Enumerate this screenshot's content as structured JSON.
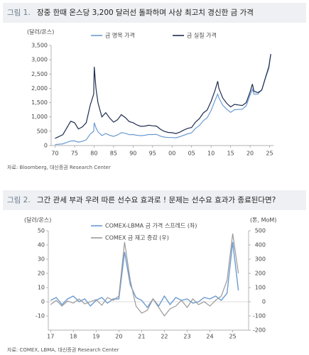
{
  "chart_data": [
    {
      "type": "line",
      "figure_label": "그림 1.",
      "title": "장중 한때 온스당 3,200 달러선 돌파하며 사상 최고치 경신한 금 가격",
      "y_unit": "(달러/온스)",
      "source": "자료: Bloomberg, 대신증권 Research Center",
      "x": [
        1970,
        1972,
        1974,
        1975,
        1976,
        1977,
        1978,
        1979,
        1979.9,
        1980.05,
        1980.5,
        1981,
        1982,
        1983,
        1984,
        1985,
        1986,
        1987,
        1988,
        1989,
        1990,
        1991,
        1992,
        1993,
        1994,
        1995,
        1996,
        1997,
        1998,
        1999,
        2000,
        2001,
        2002,
        2003,
        2004,
        2005,
        2006,
        2007,
        2008,
        2009,
        2010,
        2011,
        2011.7,
        2012,
        2013,
        2014,
        2015,
        2016,
        2017,
        2018,
        2019,
        2020,
        2020.6,
        2021,
        2022,
        2023,
        2024,
        2024.8,
        2025.3
      ],
      "series": [
        {
          "name": "금 명목 가격",
          "color": "#6a9bd1",
          "values": [
            35,
            60,
            160,
            165,
            120,
            150,
            200,
            400,
            500,
            800,
            620,
            480,
            350,
            420,
            360,
            320,
            370,
            450,
            430,
            380,
            385,
            360,
            345,
            360,
            385,
            385,
            390,
            330,
            295,
            280,
            280,
            270,
            310,
            360,
            410,
            445,
            600,
            700,
            870,
            970,
            1220,
            1570,
            1800,
            1670,
            1410,
            1270,
            1160,
            1250,
            1260,
            1270,
            1390,
            1770,
            1970,
            1800,
            1800,
            1940,
            2380,
            2700,
            3200
          ]
        },
        {
          "name": "금 실질 가격",
          "color": "#1f2d4f",
          "values": [
            250,
            380,
            850,
            800,
            580,
            650,
            800,
            1400,
            1800,
            2750,
            2000,
            1500,
            1000,
            1150,
            960,
            820,
            900,
            1080,
            980,
            840,
            800,
            720,
            670,
            680,
            710,
            690,
            680,
            570,
            500,
            460,
            450,
            420,
            470,
            540,
            600,
            630,
            820,
            940,
            1140,
            1240,
            1540,
            1920,
            2250,
            2000,
            1660,
            1480,
            1350,
            1440,
            1420,
            1400,
            1500,
            1880,
            2150,
            1900,
            1850,
            1940,
            2400,
            2750,
            3200
          ]
        }
      ],
      "xlim": [
        1969,
        2026
      ],
      "xticks": [
        {
          "value": 1970,
          "label": "70"
        },
        {
          "value": 1975,
          "label": "75"
        },
        {
          "value": 1980,
          "label": "80"
        },
        {
          "value": 1985,
          "label": "85"
        },
        {
          "value": 1990,
          "label": "90"
        },
        {
          "value": 1995,
          "label": "95"
        },
        {
          "value": 2000,
          "label": "00"
        },
        {
          "value": 2005,
          "label": "05"
        },
        {
          "value": 2010,
          "label": "10"
        },
        {
          "value": 2015,
          "label": "15"
        },
        {
          "value": 2020,
          "label": "20"
        },
        {
          "value": 2025,
          "label": "25"
        }
      ],
      "ylim": [
        0,
        3500
      ],
      "yticks": [
        0,
        500,
        {
          "value": 1000,
          "label": "1,000"
        },
        {
          "value": 1500,
          "label": "1,500"
        },
        {
          "value": 2000,
          "label": "2,000"
        },
        {
          "value": 2500,
          "label": "2,500"
        },
        {
          "value": 3000,
          "label": "3,000"
        },
        {
          "value": 3500,
          "label": "3,500"
        }
      ],
      "grid": false,
      "legend": "top"
    },
    {
      "type": "line",
      "figure_label": "그림 2.",
      "title": "그간 관세 부과 우려 따른 선수요 효과로 ! 문제는 선수요 효과가 종료된다면?",
      "y_unit": "(달러/온스)",
      "y2_unit": "(톤, MoM)",
      "source": "자료: COMEX, LBMA, 대신증권 Research Center",
      "x": [
        2017,
        2017.25,
        2017.5,
        2017.75,
        2018,
        2018.25,
        2018.5,
        2018.75,
        2019,
        2019.25,
        2019.5,
        2019.75,
        2020,
        2020.25,
        2020.5,
        2020.75,
        2021,
        2021.25,
        2021.5,
        2021.75,
        2022,
        2022.25,
        2022.5,
        2022.75,
        2023,
        2023.25,
        2023.5,
        2023.75,
        2024,
        2024.25,
        2024.5,
        2024.75,
        2025,
        2025.25
      ],
      "series": [
        {
          "name": "COMEX-LBMA 금 가격 스프레드 (좌)",
          "color": "#6a9bd1",
          "values": [
            1,
            3,
            -2,
            2,
            4,
            0,
            2,
            -3,
            1,
            3,
            -1,
            2,
            2,
            35,
            12,
            3,
            1,
            -4,
            2,
            -3,
            4,
            -2,
            3,
            1,
            2,
            -1,
            0,
            3,
            2,
            4,
            1,
            6,
            42,
            8
          ]
        },
        {
          "name": "COMEX 금 재고 증감 (우)",
          "color": "#9a9a9a",
          "axis": "y2",
          "values": [
            -20,
            10,
            -30,
            5,
            -10,
            20,
            -15,
            0,
            15,
            -25,
            30,
            10,
            40,
            420,
            150,
            -30,
            -80,
            -60,
            20,
            -40,
            -100,
            -50,
            -30,
            10,
            -40,
            20,
            -20,
            0,
            -30,
            10,
            40,
            150,
            480,
            200
          ]
        }
      ],
      "xlim": [
        2016.9,
        2025.7
      ],
      "xticks": [
        {
          "value": 2017,
          "label": "17"
        },
        {
          "value": 2018,
          "label": "18"
        },
        {
          "value": 2019,
          "label": "19"
        },
        {
          "value": 2020,
          "label": "20"
        },
        {
          "value": 2021,
          "label": "21"
        },
        {
          "value": 2022,
          "label": "22"
        },
        {
          "value": 2023,
          "label": "23"
        },
        {
          "value": 2024,
          "label": "24"
        },
        {
          "value": 2025,
          "label": "25"
        }
      ],
      "ylim": [
        -20,
        50
      ],
      "yticks": [
        -10,
        0,
        10,
        20,
        30,
        40,
        50
      ],
      "y2lim": [
        -200,
        500
      ],
      "y2ticks": [
        -200,
        -100,
        0,
        100,
        200,
        300,
        400,
        500
      ],
      "grid": false,
      "legend": "top-left"
    }
  ]
}
